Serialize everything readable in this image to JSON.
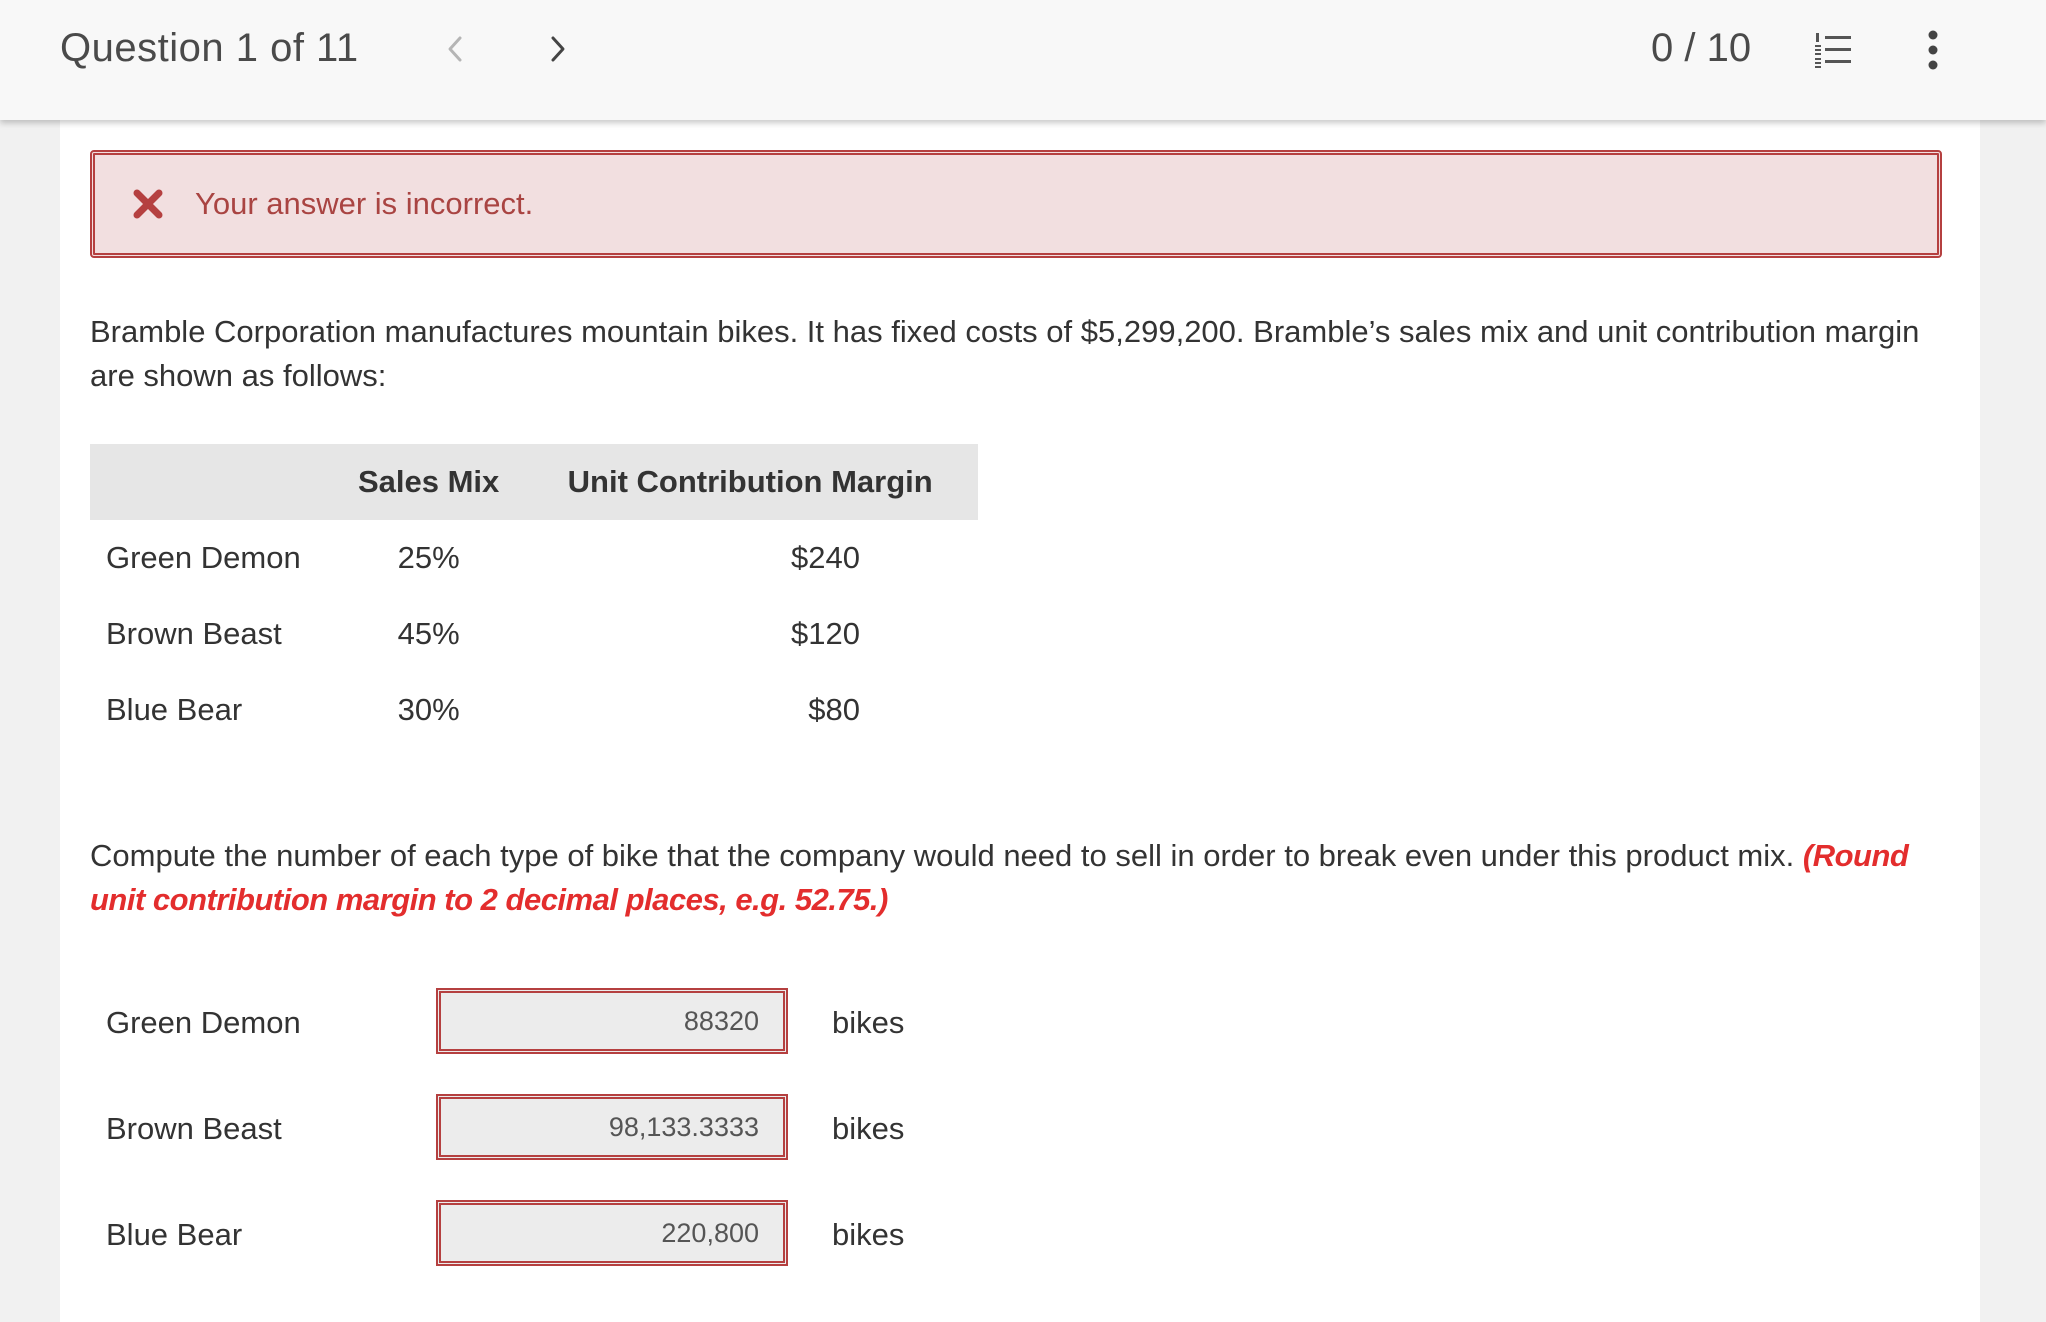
{
  "header": {
    "question_counter": "Question 1 of 11",
    "prev_label": "<",
    "next_label": ">",
    "score": "0 / 10"
  },
  "alert": {
    "message": "Your answer is incorrect."
  },
  "question": {
    "intro": "Bramble Corporation manufactures mountain bikes. It has fixed costs of $5,299,200. Bramble’s sales mix and unit contribution margin are shown as follows:",
    "table": {
      "headers": [
        "",
        "Sales Mix",
        "Unit Contribution Margin"
      ],
      "rows": [
        {
          "product": "Green Demon",
          "sales_mix": "25%",
          "ucm": "$240"
        },
        {
          "product": "Brown Beast",
          "sales_mix": "45%",
          "ucm": "$120"
        },
        {
          "product": "Blue Bear",
          "sales_mix": "30%",
          "ucm": "$80"
        }
      ]
    },
    "instruction": "Compute the number of each type of bike that the company would need to sell in order to break even under this product mix.",
    "hint": "(Round unit contribution margin to 2 decimal places, e.g. 52.75.)"
  },
  "answers": [
    {
      "label": "Green Demon",
      "value": "88320",
      "unit": "bikes"
    },
    {
      "label": "Brown Beast",
      "value": "98,133.3333",
      "unit": "bikes"
    },
    {
      "label": "Blue Bear",
      "value": "220,800",
      "unit": "bikes"
    }
  ],
  "colors": {
    "error": "#a94442",
    "alert_bg": "#f2dfe0",
    "hint": "#e32d2d"
  },
  "icons": {
    "prev": "chevron-left-icon",
    "next": "chevron-right-icon",
    "list": "numbered-list-icon",
    "more": "more-vertical-icon",
    "alert": "x-mark-icon"
  }
}
